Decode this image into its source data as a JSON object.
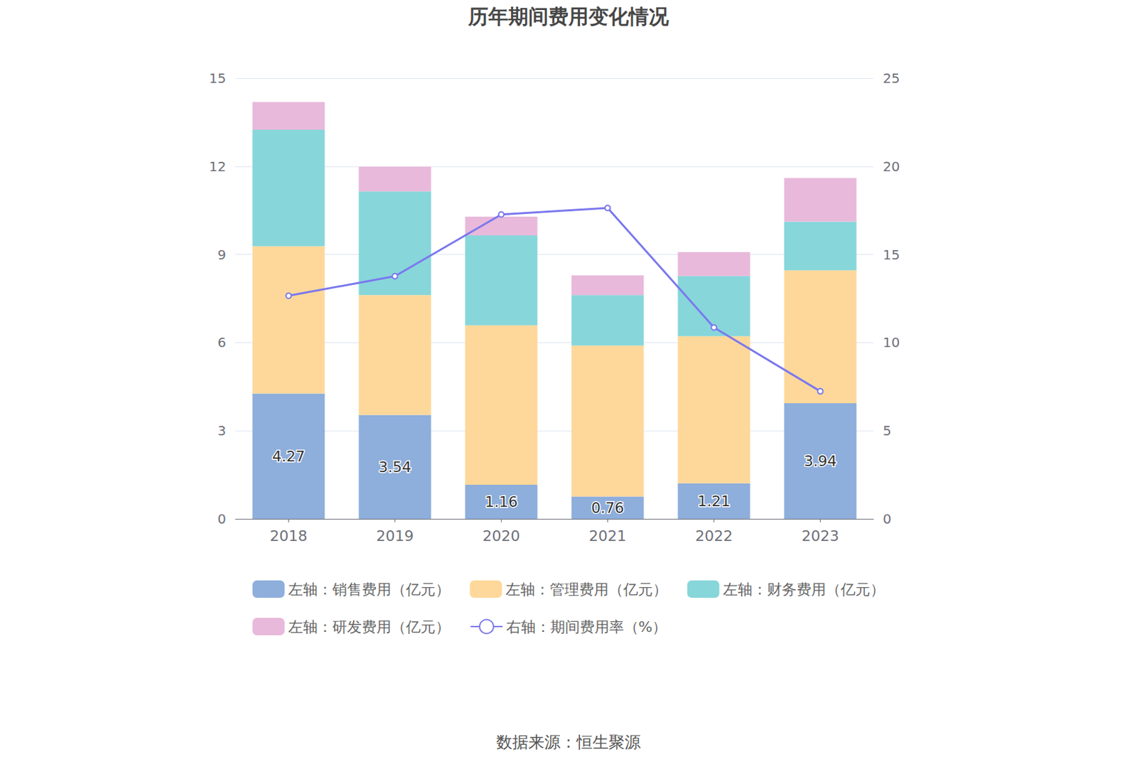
{
  "chart_data": {
    "type": "bar",
    "title": "历年期间费用变化情况",
    "source": "数据来源：恒生聚源",
    "categories": [
      "2018",
      "2019",
      "2020",
      "2021",
      "2022",
      "2023"
    ],
    "stacked": true,
    "grid": true,
    "legend": "bottom",
    "ylim": [
      0,
      15
    ],
    "yticks": [
      0,
      3,
      6,
      9,
      12,
      15
    ],
    "y2lim": [
      0,
      25
    ],
    "y2ticks": [
      0,
      5,
      10,
      15,
      20,
      25
    ],
    "series": [
      {
        "name": "左轴：销售费用（亿元）",
        "type": "bar",
        "color": "#8eaedb",
        "data_labels": true,
        "values": [
          4.27,
          3.54,
          1.16,
          0.76,
          1.21,
          3.94
        ]
      },
      {
        "name": "左轴：管理费用（亿元）",
        "type": "bar",
        "color": "#fed89a",
        "values": [
          5.01,
          4.08,
          5.43,
          5.14,
          5.01,
          4.52
        ]
      },
      {
        "name": "左轴：财务费用（亿元）",
        "type": "bar",
        "color": "#87d6da",
        "values": [
          3.97,
          3.53,
          3.06,
          1.72,
          2.05,
          1.66
        ]
      },
      {
        "name": "左轴：研发费用（亿元）",
        "type": "bar",
        "color": "#e8b9da",
        "values": [
          0.94,
          0.84,
          0.64,
          0.67,
          0.81,
          1.48
        ]
      },
      {
        "name": "右轴：期间费用率（%）",
        "type": "line",
        "axis": "y2",
        "color": "#7b78ee",
        "marker": "circle",
        "values": [
          12.66,
          13.77,
          17.27,
          17.64,
          10.86,
          7.24
        ]
      }
    ]
  }
}
